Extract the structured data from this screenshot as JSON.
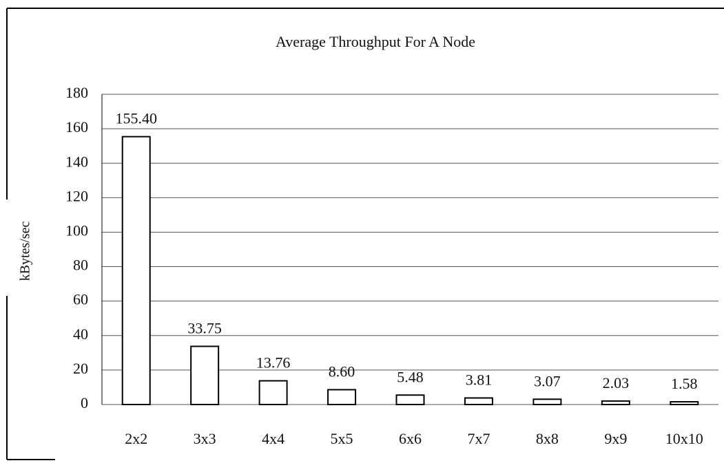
{
  "chart_data": {
    "type": "bar",
    "title": "Average Throughput For A Node",
    "y_label": "kBytes/sec",
    "categories": [
      "2x2",
      "3x3",
      "4x4",
      "5x5",
      "6x6",
      "7x7",
      "8x8",
      "9x9",
      "10x10"
    ],
    "values": [
      155.4,
      33.75,
      13.76,
      8.6,
      5.48,
      3.81,
      3.07,
      2.03,
      1.58
    ],
    "value_labels": [
      "155.40",
      "33.75",
      "13.76",
      "8.60",
      "5.48",
      "3.81",
      "3.07",
      "2.03",
      "1.58"
    ],
    "color": "#ffffff",
    "ylim": [
      0,
      180
    ],
    "yticks": [
      0,
      20,
      40,
      60,
      80,
      100,
      120,
      140,
      160,
      180
    ],
    "grid": true
  }
}
